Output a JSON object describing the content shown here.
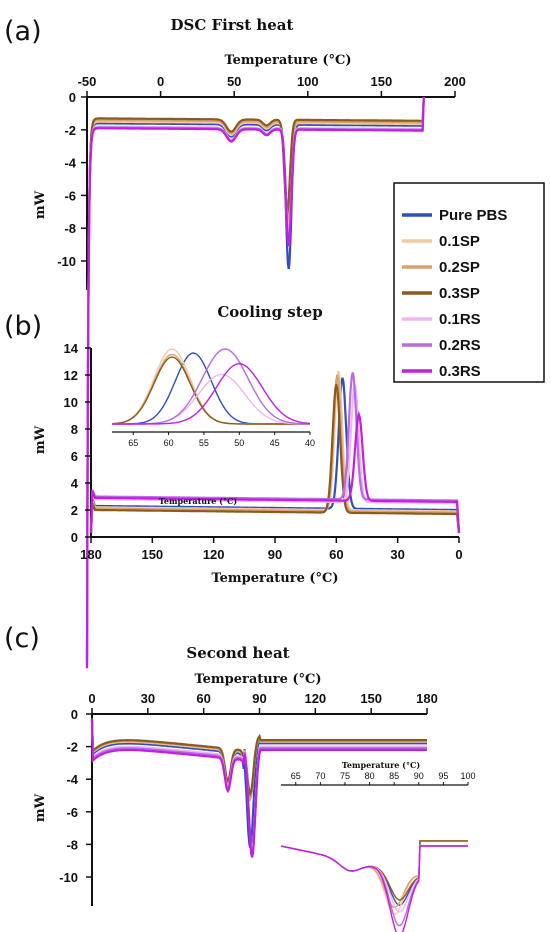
{
  "colors": {
    "Pure PBS": "#2f4fbf",
    "0.1SP": "#f2c9a4",
    "0.2SP": "#d7a46b",
    "0.3SP": "#8b5a1f",
    "0.1RS": "#f0b6ee",
    "0.2RS": "#b86be6",
    "0.3RS": "#c21fe0"
  },
  "legend": [
    "Pure PBS",
    "0.1SP",
    "0.2SP",
    "0.3SP",
    "0.1RS",
    "0.2RS",
    "0.3RS"
  ],
  "chart_data": [
    {
      "panel_label": "(a)",
      "type": "line",
      "title": "DSC First heat",
      "xlabel": "Temperature (°C)",
      "ylabel": "mW",
      "xlim": [
        -50,
        200
      ],
      "ylim": [
        -12,
        0
      ],
      "x_ticks": [
        -50,
        0,
        50,
        100,
        150,
        200
      ],
      "y_ticks": [
        0,
        -2,
        -4,
        -6,
        -8,
        -10
      ],
      "x_axis_position": "top",
      "series": [
        {
          "name": "Pure PBS",
          "baseline": -1.6,
          "peak_x": 87,
          "peak_y": -10.4,
          "end_x": 178
        },
        {
          "name": "0.1SP",
          "baseline": -1.5,
          "peak_x": 86.5,
          "peak_y": -8.0,
          "end_x": 178
        },
        {
          "name": "0.2SP",
          "baseline": -1.4,
          "peak_x": 86.5,
          "peak_y": -7.5,
          "end_x": 178
        },
        {
          "name": "0.3SP",
          "baseline": -1.3,
          "peak_x": 86,
          "peak_y": -7.0,
          "end_x": 178
        },
        {
          "name": "0.1RS",
          "baseline": -1.8,
          "peak_x": 87,
          "peak_y": -8.5,
          "end_x": 178
        },
        {
          "name": "0.2RS",
          "baseline": -1.85,
          "peak_x": 87,
          "peak_y": -8.8,
          "end_x": 178
        },
        {
          "name": "0.3RS",
          "baseline": -1.9,
          "peak_x": 87,
          "peak_y": -9.0,
          "end_x": 178
        }
      ]
    },
    {
      "panel_label": "(b)",
      "type": "line",
      "title": "Cooling step",
      "xlabel": "Temperature (°C)",
      "ylabel": "mW",
      "xlim": [
        180,
        0
      ],
      "ylim": [
        0,
        14
      ],
      "x_ticks": [
        180,
        150,
        120,
        90,
        60,
        30,
        0
      ],
      "y_ticks": [
        0,
        2,
        4,
        6,
        8,
        10,
        12,
        14
      ],
      "series": [
        {
          "name": "Pure PBS",
          "baseline": 2.3,
          "peak_x": 57,
          "peak_y": 12.0
        },
        {
          "name": "0.1SP",
          "baseline": 2.2,
          "peak_x": 59,
          "peak_y": 12.5
        },
        {
          "name": "0.2SP",
          "baseline": 2.1,
          "peak_x": 59.5,
          "peak_y": 12.2
        },
        {
          "name": "0.3SP",
          "baseline": 2.0,
          "peak_x": 60,
          "peak_y": 11.5
        },
        {
          "name": "0.1RS",
          "baseline": 2.8,
          "peak_x": 51,
          "peak_y": 11.5
        },
        {
          "name": "0.2RS",
          "baseline": 3.0,
          "peak_x": 52,
          "peak_y": 12.4
        },
        {
          "name": "0.3RS",
          "baseline": 2.9,
          "peak_x": 49,
          "peak_y": 9.3
        }
      ],
      "inset": {
        "xlabel": "Temperature (°C)",
        "xlim": [
          68,
          40
        ],
        "ylim": [
          7.5,
          14
        ],
        "x_ticks": [
          65,
          60,
          55,
          50,
          45,
          40
        ],
        "series": [
          {
            "name": "Pure PBS",
            "peak_x": 56.5,
            "peak_y": 13.4
          },
          {
            "name": "0.1SP",
            "peak_x": 59.5,
            "peak_y": 13.7
          },
          {
            "name": "0.2SP",
            "peak_x": 59.5,
            "peak_y": 13.3
          },
          {
            "name": "0.3SP",
            "peak_x": 59.5,
            "peak_y": 13.1
          },
          {
            "name": "0.1RS",
            "peak_x": 52.5,
            "peak_y": 11.8
          },
          {
            "name": "0.2RS",
            "peak_x": 52.0,
            "peak_y": 13.7
          },
          {
            "name": "0.3RS",
            "peak_x": 50.0,
            "peak_y": 12.6
          }
        ]
      }
    },
    {
      "panel_label": "(c)",
      "type": "line",
      "title": "Second heat",
      "xlabel": "Temperature (°C)",
      "ylabel": "mW",
      "xlim": [
        0,
        180
      ],
      "ylim": [
        -12.5,
        0
      ],
      "x_ticks": [
        0,
        30,
        60,
        90,
        120,
        150,
        180
      ],
      "y_ticks": [
        0,
        -2,
        -4,
        -6,
        -8,
        -10
      ],
      "x_axis_position": "top",
      "series": [
        {
          "name": "Pure PBS",
          "baseline": -1.9,
          "peak_x": 85,
          "peak_y": -8.6
        },
        {
          "name": "0.1SP",
          "baseline": -1.8,
          "peak_x": 85,
          "peak_y": -5.5
        },
        {
          "name": "0.2SP",
          "baseline": -1.75,
          "peak_x": 85,
          "peak_y": -5.6
        },
        {
          "name": "0.3SP",
          "baseline": -1.7,
          "peak_x": 85,
          "peak_y": -5.3
        },
        {
          "name": "0.1RS",
          "baseline": -2.1,
          "peak_x": 86,
          "peak_y": -9.0
        },
        {
          "name": "0.2RS",
          "baseline": -2.2,
          "peak_x": 86,
          "peak_y": -9.1
        },
        {
          "name": "0.3RS",
          "baseline": -2.3,
          "peak_x": 86,
          "peak_y": -9.2
        }
      ],
      "inset": {
        "xlabel": "Temperature (°C)",
        "xlim": [
          62,
          100
        ],
        "ylim": [
          -12.5,
          -6.5
        ],
        "x_ticks": [
          65,
          70,
          75,
          80,
          85,
          90,
          95,
          100
        ],
        "series": [
          {
            "name": "Pure PBS",
            "peak_x": 86,
            "peak_y": -10.6
          },
          {
            "name": "0.1SP",
            "peak_x": 85,
            "peak_y": -11.2
          },
          {
            "name": "0.2SP",
            "peak_x": 85,
            "peak_y": -10.8
          },
          {
            "name": "0.3SP",
            "peak_x": 86,
            "peak_y": -10.3
          },
          {
            "name": "0.1RS",
            "peak_x": 86,
            "peak_y": -11.0
          },
          {
            "name": "0.2RS",
            "peak_x": 86,
            "peak_y": -11.8
          },
          {
            "name": "0.3RS",
            "peak_x": 86,
            "peak_y": -12.4
          }
        ]
      }
    }
  ]
}
